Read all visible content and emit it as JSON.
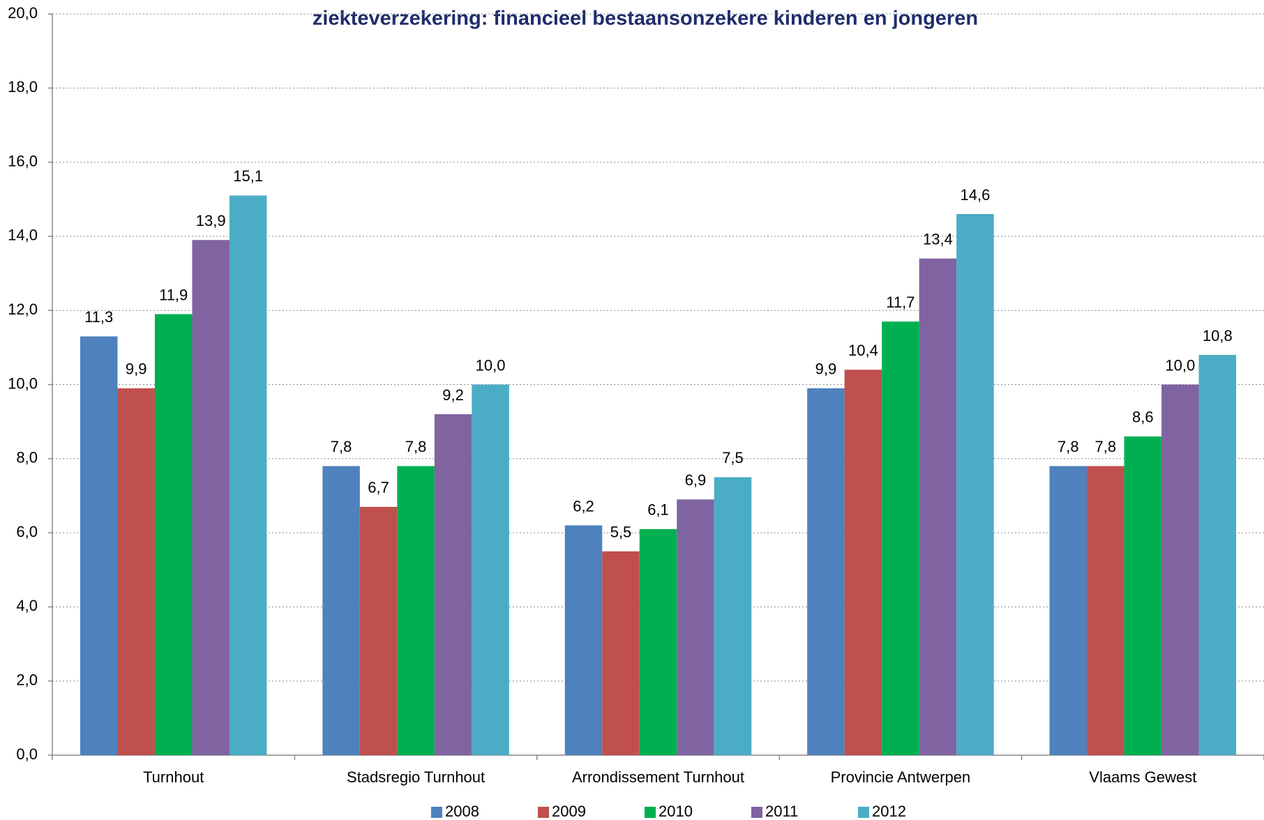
{
  "chart_data": {
    "type": "bar",
    "title": "ziekteverzekering: financieel bestaansonzekere kinderen en jongeren",
    "categories": [
      "Turnhout",
      "Stadsregio Turnhout",
      "Arrondissement Turnhout",
      "Provincie Antwerpen",
      "Vlaams Gewest"
    ],
    "series": [
      {
        "name": "2008",
        "color": "#4f81bd",
        "values": [
          11.3,
          7.8,
          6.2,
          9.9,
          7.8
        ],
        "value_labels": [
          "11,3",
          "7,8",
          "6,2",
          "9,9",
          "7,8"
        ]
      },
      {
        "name": "2009",
        "color": "#c0504d",
        "values": [
          9.9,
          6.7,
          5.5,
          10.4,
          7.8
        ],
        "value_labels": [
          "9,9",
          "6,7",
          "5,5",
          "10,4",
          "7,8"
        ]
      },
      {
        "name": "2010",
        "color": "#00b050",
        "values": [
          11.9,
          7.8,
          6.1,
          11.7,
          8.6
        ],
        "value_labels": [
          "11,9",
          "7,8",
          "6,1",
          "11,7",
          "8,6"
        ]
      },
      {
        "name": "2011",
        "color": "#8064a2",
        "values": [
          13.9,
          9.2,
          6.9,
          13.4,
          10.0
        ],
        "value_labels": [
          "13,9",
          "9,2",
          "6,9",
          "13,4",
          "10,0"
        ]
      },
      {
        "name": "2012",
        "color": "#4bacc6",
        "values": [
          15.1,
          10.0,
          7.5,
          14.6,
          10.8
        ],
        "value_labels": [
          "15,1",
          "10,0",
          "7,5",
          "14,6",
          "10,8"
        ]
      }
    ],
    "ylim": [
      0,
      20
    ],
    "yticks": [
      {
        "value": 0,
        "label": "0,0"
      },
      {
        "value": 2,
        "label": "2,0"
      },
      {
        "value": 4,
        "label": "4,0"
      },
      {
        "value": 6,
        "label": "6,0"
      },
      {
        "value": 8,
        "label": "8,0"
      },
      {
        "value": 10,
        "label": "10,0"
      },
      {
        "value": 12,
        "label": "12,0"
      },
      {
        "value": 14,
        "label": "14,0"
      },
      {
        "value": 16,
        "label": "16,0"
      },
      {
        "value": 18,
        "label": "18,0"
      },
      {
        "value": 20,
        "label": "20,0"
      }
    ],
    "grid": true,
    "legend": "bottom"
  }
}
